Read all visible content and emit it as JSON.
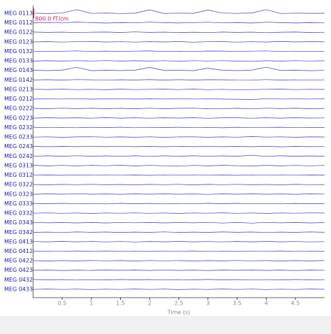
{
  "chart_data": {
    "type": "line",
    "x": [
      0,
      0.25,
      0.5,
      0.75,
      1,
      1.25,
      1.5,
      1.75,
      2,
      2.25,
      2.5,
      2.75,
      3,
      3.25,
      3.5,
      3.75,
      4,
      4.25,
      4.5,
      4.75,
      5
    ],
    "xlim": [
      0,
      5
    ],
    "xticks": [
      0.5,
      1,
      1.5,
      2,
      2.5,
      3,
      3.5,
      4,
      4.5
    ],
    "xlabel": "Time (s)",
    "scale_bar": {
      "value": 800,
      "label": "800.0 fT/cm",
      "color": "#c2185b"
    },
    "series": [
      {
        "name": "MEG 0113",
        "color": "#3434d6",
        "values": [
          10,
          -20,
          15,
          300,
          -10,
          20,
          -15,
          5,
          280,
          -20,
          10,
          -5,
          260,
          15,
          -10,
          20,
          300,
          -15,
          10,
          -5,
          0
        ]
      },
      {
        "name": "MEG 0112",
        "color": "#3434d6",
        "values": [
          -15,
          20,
          -10,
          60,
          15,
          -20,
          10,
          -5,
          50,
          10,
          -15,
          20,
          45,
          -10,
          15,
          -20,
          55,
          10,
          -15,
          5,
          -10
        ]
      },
      {
        "name": "MEG 0122",
        "color": "#3434d6",
        "values": [
          20,
          -10,
          15,
          -25,
          10,
          20,
          -15,
          30,
          -10,
          15,
          -20,
          10,
          -25,
          20,
          -10,
          15,
          -30,
          10,
          20,
          -15,
          5
        ]
      },
      {
        "name": "MEG 0123",
        "color": "#3434d6",
        "values": [
          -10,
          15,
          -20,
          10,
          25,
          -15,
          10,
          -20,
          15,
          -10,
          20,
          -25,
          10,
          15,
          -20,
          10,
          -15,
          25,
          -10,
          15,
          -5
        ]
      },
      {
        "name": "MEG 0132",
        "color": "#3434d6",
        "values": [
          15,
          -20,
          10,
          40,
          -15,
          20,
          -10,
          15,
          35,
          -20,
          10,
          -15,
          30,
          20,
          -10,
          15,
          40,
          -20,
          15,
          -10,
          10
        ]
      },
      {
        "name": "MEG 0133",
        "color": "#3434d6",
        "values": [
          -20,
          10,
          -15,
          20,
          -10,
          25,
          -20,
          10,
          -15,
          20,
          -30,
          15,
          -10,
          20,
          -15,
          -35,
          10,
          -20,
          15,
          -10,
          5
        ]
      },
      {
        "name": "MEG 0143",
        "color": "#3434d6",
        "values": [
          5,
          -15,
          20,
          250,
          -20,
          10,
          -15,
          20,
          240,
          -10,
          15,
          -20,
          180,
          10,
          -15,
          20,
          260,
          -10,
          15,
          -20,
          0
        ]
      },
      {
        "name": "MEG 0142",
        "color": "#3434d6",
        "values": [
          -10,
          20,
          -15,
          30,
          10,
          -20,
          15,
          -10,
          25,
          -15,
          20,
          -10,
          20,
          15,
          -20,
          -25,
          30,
          -15,
          10,
          -20,
          10
        ]
      },
      {
        "name": "MEG 0213",
        "color": "#3434d6",
        "values": [
          15,
          -10,
          20,
          -15,
          10,
          -25,
          20,
          -15,
          10,
          20,
          -15,
          25,
          -20,
          10,
          -40,
          -15,
          10,
          20,
          -15,
          10,
          -5
        ]
      },
      {
        "name": "MEG 0212",
        "color": "#3434d6",
        "values": [
          -20,
          15,
          -10,
          20,
          -25,
          10,
          15,
          -20,
          10,
          -15,
          25,
          -10,
          15,
          -20,
          -30,
          -50,
          15,
          -10,
          20,
          -15,
          10
        ]
      },
      {
        "name": "MEG 0222",
        "color": "#3434d6",
        "values": [
          10,
          -15,
          25,
          -10,
          15,
          -20,
          10,
          -25,
          20,
          -15,
          10,
          20,
          -15,
          -30,
          15,
          -35,
          20,
          -10,
          15,
          -20,
          5
        ]
      },
      {
        "name": "MEG 0223",
        "color": "#3434d6",
        "values": [
          -15,
          20,
          -10,
          15,
          -20,
          25,
          -15,
          10,
          -20,
          15,
          -10,
          20,
          -25,
          10,
          15,
          -20,
          10,
          -15,
          20,
          -10,
          0
        ]
      },
      {
        "name": "MEG 0232",
        "color": "#3434d6",
        "values": [
          20,
          -15,
          10,
          -20,
          15,
          -10,
          25,
          -20,
          15,
          -10,
          20,
          -15,
          10,
          -25,
          20,
          -15,
          10,
          20,
          -15,
          10,
          -10
        ]
      },
      {
        "name": "MEG 0233",
        "color": "#3434d6",
        "values": [
          -10,
          15,
          -25,
          10,
          20,
          -15,
          10,
          -20,
          15,
          -25,
          10,
          15,
          -20,
          10,
          -15,
          30,
          -10,
          15,
          -20,
          10,
          5
        ]
      },
      {
        "name": "MEG 0243",
        "color": "#3434d6",
        "values": [
          15,
          -20,
          10,
          -15,
          25,
          -10,
          20,
          -15,
          10,
          -20,
          15,
          -10,
          20,
          -15,
          10,
          -20,
          15,
          -25,
          10,
          -15,
          0
        ]
      },
      {
        "name": "MEG 0242",
        "color": "#3434d6",
        "values": [
          -25,
          20,
          -15,
          30,
          -20,
          15,
          -25,
          20,
          -30,
          25,
          -15,
          20,
          -25,
          15,
          -20,
          60,
          -25,
          20,
          -15,
          10,
          -10
        ]
      },
      {
        "name": "MEG 0313",
        "color": "#3434d6",
        "values": [
          20,
          -25,
          15,
          -30,
          20,
          -15,
          25,
          -35,
          15,
          -20,
          -50,
          15,
          -25,
          20,
          -15,
          -40,
          20,
          -25,
          15,
          -20,
          10
        ]
      },
      {
        "name": "MEG 0312",
        "color": "#3434d6",
        "values": [
          -15,
          10,
          -20,
          15,
          -10,
          20,
          -15,
          10,
          -25,
          15,
          -10,
          20,
          -15,
          10,
          -20,
          15,
          -10,
          20,
          -15,
          10,
          -5
        ]
      },
      {
        "name": "MEG 0322",
        "color": "#3434d6",
        "values": [
          10,
          -20,
          15,
          -10,
          20,
          -15,
          10,
          -20,
          15,
          -10,
          20,
          -25,
          15,
          -10,
          20,
          -15,
          10,
          -20,
          15,
          -10,
          5
        ]
      },
      {
        "name": "MEG 0323",
        "color": "#3434d6",
        "values": [
          -20,
          15,
          -10,
          25,
          -15,
          10,
          -20,
          15,
          -10,
          20,
          -15,
          10,
          -25,
          15,
          -10,
          20,
          -15,
          10,
          -20,
          15,
          0
        ]
      },
      {
        "name": "MEG 0333",
        "color": "#3434d6",
        "values": [
          15,
          -10,
          20,
          -15,
          10,
          -20,
          25,
          -10,
          15,
          -20,
          10,
          -15,
          20,
          -10,
          25,
          -15,
          10,
          -20,
          15,
          -10,
          -5
        ]
      },
      {
        "name": "MEG 0332",
        "color": "#3434d6",
        "values": [
          -10,
          20,
          -15,
          10,
          -25,
          15,
          -10,
          20,
          -15,
          10,
          -20,
          15,
          -10,
          25,
          -15,
          10,
          -20,
          15,
          -10,
          20,
          5
        ]
      },
      {
        "name": "MEG 0343",
        "color": "#3434d6",
        "values": [
          20,
          -15,
          10,
          -20,
          15,
          -25,
          20,
          -10,
          15,
          -20,
          10,
          -15,
          20,
          -30,
          15,
          -40,
          20,
          -15,
          10,
          -20,
          0
        ]
      },
      {
        "name": "MEG 0342",
        "color": "#3434d6",
        "values": [
          -15,
          10,
          -25,
          20,
          -10,
          15,
          -20,
          10,
          -15,
          25,
          -20,
          10,
          -15,
          20,
          -10,
          15,
          -25,
          10,
          -15,
          20,
          -10
        ]
      },
      {
        "name": "MEG 0413",
        "color": "#3434d6",
        "values": [
          10,
          -15,
          20,
          -10,
          15,
          -20,
          10,
          -25,
          15,
          -10,
          20,
          -15,
          10,
          -20,
          15,
          -10,
          20,
          -15,
          10,
          -20,
          5
        ]
      },
      {
        "name": "MEG 0412",
        "color": "#3434d6",
        "values": [
          -20,
          10,
          -15,
          20,
          -10,
          25,
          -15,
          10,
          -20,
          15,
          -10,
          20,
          -15,
          10,
          -25,
          15,
          -10,
          20,
          -15,
          10,
          0
        ]
      },
      {
        "name": "MEG 0422",
        "color": "#3434d6",
        "values": [
          15,
          -20,
          10,
          -15,
          20,
          -10,
          15,
          -25,
          20,
          -10,
          15,
          -20,
          10,
          -15,
          20,
          -10,
          15,
          -20,
          10,
          -15,
          10
        ]
      },
      {
        "name": "MEG 0423",
        "color": "#3434d6",
        "values": [
          -10,
          15,
          -20,
          10,
          -15,
          20,
          -10,
          15,
          -20,
          25,
          -15,
          10,
          -20,
          15,
          -10,
          20,
          -15,
          10,
          -20,
          15,
          -5
        ]
      },
      {
        "name": "MEG 0432",
        "color": "#3434d6",
        "values": [
          20,
          -10,
          15,
          -25,
          10,
          -15,
          20,
          -10,
          15,
          -20,
          10,
          -15,
          25,
          -10,
          15,
          -20,
          10,
          -15,
          20,
          -10,
          5
        ]
      },
      {
        "name": "MEG 0433",
        "color": "#3434d6",
        "values": [
          -15,
          20,
          -10,
          15,
          -20,
          10,
          -15,
          20,
          -10,
          15,
          -25,
          10,
          -15,
          20,
          -10,
          15,
          -20,
          10,
          -15,
          20,
          0
        ]
      }
    ]
  }
}
